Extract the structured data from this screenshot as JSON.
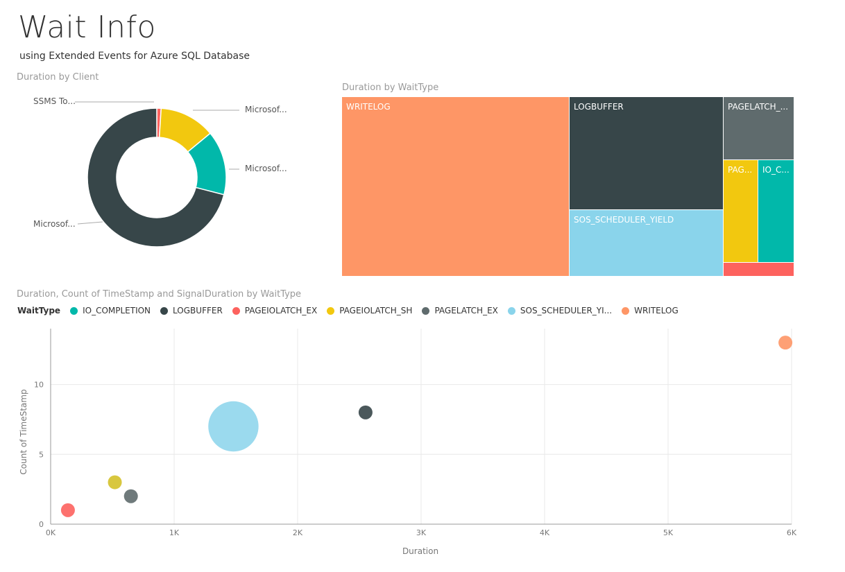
{
  "header": {
    "title": "Wait Info",
    "subtitle": "using Extended Events for Azure SQL Database"
  },
  "colors": {
    "IO_COMPLETION": "#01b8aa",
    "LOGBUFFER": "#374649",
    "PAGEIOLATCH_EX": "#fd625e",
    "PAGEIOLATCH_SH": "#f2c80f",
    "PAGELATCH_EX": "#5f6b6d",
    "SOS_SCHEDULER_YIELD": "#8ad4eb",
    "WRITELOG": "#fe9666"
  },
  "donut": {
    "panel_title": "Duration by Client",
    "chart_data": {
      "type": "pie",
      "style": "donut",
      "slices": [
        {
          "label": "SSMS To...",
          "value": 1.0,
          "color": "#fd625e"
        },
        {
          "label": "Microsof...",
          "value": 13.0,
          "color": "#f2c80f"
        },
        {
          "label": "Microsof...",
          "value": 15.0,
          "color": "#01b8aa"
        },
        {
          "label": "Microsof...",
          "value": 71.0,
          "color": "#374649"
        }
      ]
    }
  },
  "treemap": {
    "panel_title": "Duration by WaitType",
    "chart_data": {
      "type": "treemap",
      "items": [
        {
          "label": "WRITELOG",
          "value": 5950,
          "color": "#fe9666"
        },
        {
          "label": "LOGBUFFER",
          "value": 2550,
          "color": "#374649"
        },
        {
          "label": "SOS_SCHEDULER_YIELD",
          "value": 1480,
          "color": "#8ad4eb"
        },
        {
          "label": "PAGELATCH_...",
          "value": 650,
          "color": "#5f6b6d"
        },
        {
          "label": "PAG...",
          "value": 520,
          "color": "#f2c80f"
        },
        {
          "label": "IO_C...",
          "value": 520,
          "color": "#01b8aa"
        },
        {
          "label": "",
          "value": 150,
          "color": "#fd625e"
        }
      ]
    }
  },
  "scatter": {
    "panel_title": "Duration, Count of TimeStamp and SignalDuration by WaitType",
    "legend_title": "WaitType",
    "legend": [
      {
        "name": "IO_COMPLETION",
        "color": "#01b8aa"
      },
      {
        "name": "LOGBUFFER",
        "color": "#374649"
      },
      {
        "name": "PAGEIOLATCH_EX",
        "color": "#fd625e"
      },
      {
        "name": "PAGEIOLATCH_SH",
        "color": "#f2c80f"
      },
      {
        "name": "PAGELATCH_EX",
        "color": "#5f6b6d"
      },
      {
        "name": "SOS_SCHEDULER_YI...",
        "color": "#8ad4eb"
      },
      {
        "name": "WRITELOG",
        "color": "#fe9666"
      }
    ],
    "chart_data": {
      "type": "scatter",
      "xlabel": "Duration",
      "ylabel": "Count of TimeStamp",
      "xlim": [
        0,
        6000
      ],
      "ylim": [
        0,
        14
      ],
      "xticks": [
        0,
        1000,
        2000,
        3000,
        4000,
        5000,
        6000
      ],
      "xtick_labels": [
        "0K",
        "1K",
        "2K",
        "3K",
        "4K",
        "5K",
        "6K"
      ],
      "yticks": [
        0,
        5,
        10
      ],
      "ytick_labels": [
        "0",
        "5",
        "10"
      ],
      "grid": true,
      "points": [
        {
          "series": "PAGEIOLATCH_EX",
          "x": 140,
          "y": 1,
          "size": 1,
          "color": "#fd625e"
        },
        {
          "series": "PAGEIOLATCH_SH",
          "x": 520,
          "y": 3,
          "size": 1,
          "color": "#d4c12a"
        },
        {
          "series": "PAGELATCH_EX",
          "x": 650,
          "y": 2,
          "size": 1,
          "color": "#5f6b6d"
        },
        {
          "series": "SOS_SCHEDULER_YIELD",
          "x": 1480,
          "y": 7,
          "size": 8,
          "color": "#8ad4eb"
        },
        {
          "series": "LOGBUFFER",
          "x": 2550,
          "y": 8,
          "size": 1,
          "color": "#374649"
        },
        {
          "series": "WRITELOG",
          "x": 5950,
          "y": 13,
          "size": 1,
          "color": "#fe9666"
        }
      ]
    }
  }
}
